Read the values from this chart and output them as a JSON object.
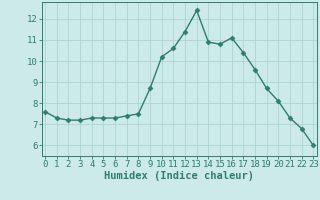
{
  "x": [
    0,
    1,
    2,
    3,
    4,
    5,
    6,
    7,
    8,
    9,
    10,
    11,
    12,
    13,
    14,
    15,
    16,
    17,
    18,
    19,
    20,
    21,
    22,
    23
  ],
  "y": [
    7.6,
    7.3,
    7.2,
    7.2,
    7.3,
    7.3,
    7.3,
    7.4,
    7.5,
    8.7,
    10.2,
    10.6,
    11.4,
    12.4,
    10.9,
    10.8,
    11.1,
    10.4,
    9.6,
    8.7,
    8.1,
    7.3,
    6.8,
    6.0
  ],
  "line_color": "#2e7d6e",
  "marker": "D",
  "marker_size": 2.5,
  "bg_color": "#cceaea",
  "grid_color": "#aed4d4",
  "xlabel": "Humidex (Indice chaleur)",
  "ylim": [
    5.5,
    12.8
  ],
  "yticks": [
    6,
    7,
    8,
    9,
    10,
    11,
    12
  ],
  "xticks": [
    0,
    1,
    2,
    3,
    4,
    5,
    6,
    7,
    8,
    9,
    10,
    11,
    12,
    13,
    14,
    15,
    16,
    17,
    18,
    19,
    20,
    21,
    22,
    23
  ],
  "xlim": [
    -0.3,
    23.3
  ],
  "xlabel_fontsize": 7.5,
  "tick_fontsize": 6.5,
  "line_width": 1.0
}
